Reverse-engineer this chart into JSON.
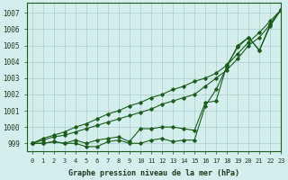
{
  "title": "Graphe pression niveau de la mer (hPa)",
  "background_color": "#d4eeee",
  "grid_color": "#aacccc",
  "line_color": "#1a5c1a",
  "xlim": [
    -0.5,
    23
  ],
  "ylim": [
    998.5,
    1007.6
  ],
  "yticks": [
    999,
    1000,
    1001,
    1002,
    1003,
    1004,
    1005,
    1006,
    1007
  ],
  "xtick_labels": [
    "0",
    "1",
    "2",
    "3",
    "4",
    "5",
    "6",
    "7",
    "8",
    "9",
    "10",
    "11",
    "12",
    "13",
    "14",
    "15",
    "16",
    "17",
    "18",
    "19",
    "20",
    "21",
    "22",
    "23"
  ],
  "series": [
    [
      999.0,
      999.3,
      999.5,
      999.7,
      1000.0,
      1000.2,
      1000.5,
      1000.8,
      1001.0,
      1001.3,
      1001.5,
      1001.8,
      1002.0,
      1002.3,
      1002.5,
      1002.8,
      1003.0,
      1003.3,
      1003.8,
      1004.5,
      1005.2,
      1005.8,
      1006.5,
      1007.2
    ],
    [
      999.0,
      999.2,
      999.4,
      999.5,
      999.7,
      999.9,
      1000.1,
      1000.3,
      1000.5,
      1000.7,
      1000.9,
      1001.1,
      1001.4,
      1001.6,
      1001.8,
      1002.0,
      1002.5,
      1003.0,
      1003.5,
      1004.2,
      1005.0,
      1005.5,
      1006.3,
      1007.2
    ],
    [
      999.0,
      999.0,
      999.1,
      999.0,
      999.0,
      998.8,
      998.8,
      999.1,
      999.2,
      999.0,
      999.0,
      999.2,
      999.3,
      999.1,
      999.2,
      999.2,
      1001.3,
      1002.3,
      1003.7,
      1005.0,
      1005.5,
      1004.7,
      1006.2,
      1007.2
    ],
    [
      999.0,
      999.0,
      999.1,
      999.0,
      999.2,
      999.0,
      999.2,
      999.3,
      999.4,
      999.1,
      999.9,
      999.9,
      1000.0,
      1000.0,
      999.9,
      999.8,
      1001.5,
      1001.6,
      1003.8,
      1004.9,
      1005.5,
      1004.7,
      1006.3,
      1007.2
    ]
  ]
}
